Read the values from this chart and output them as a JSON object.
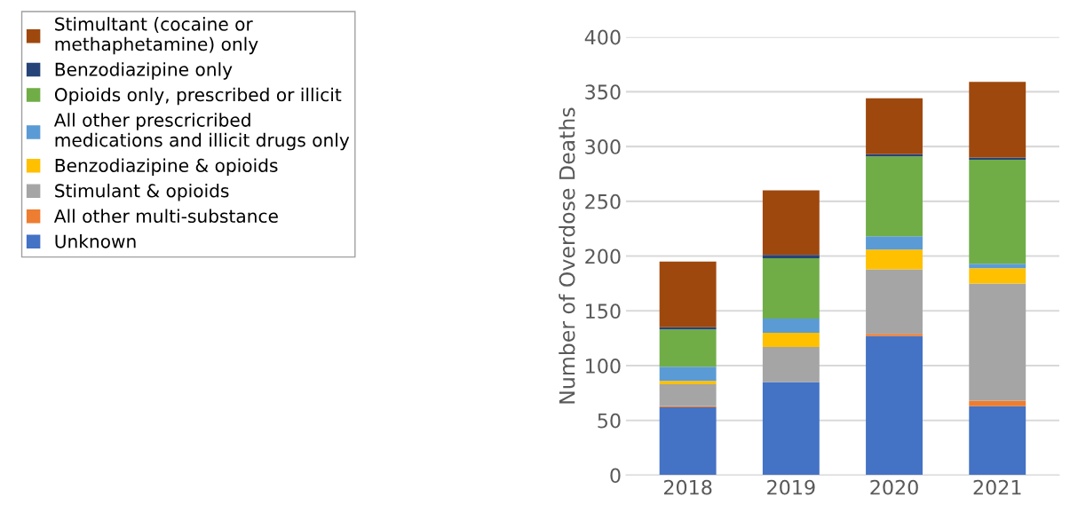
{
  "chart_data": {
    "type": "bar",
    "stacked": true,
    "ylabel": "Number of Overdose Deaths",
    "categories": [
      "2018",
      "2019",
      "2020",
      "2021"
    ],
    "series": [
      {
        "name": "Unknown",
        "color": "#4472c4",
        "values": [
          62,
          85,
          127,
          63
        ]
      },
      {
        "name": "All other multi-substance",
        "color": "#ed7d31",
        "values": [
          1,
          0,
          2,
          5
        ]
      },
      {
        "name": "Stimulant & opioids",
        "color": "#a5a5a5",
        "values": [
          20,
          32,
          59,
          107
        ]
      },
      {
        "name": "Benzodiazipine & opioids",
        "color": "#ffc000",
        "values": [
          3,
          13,
          18,
          14
        ]
      },
      {
        "name": "All other prescricribed\nmedications and illicit drugs only",
        "color": "#5b9bd5",
        "values": [
          13,
          13,
          12,
          4
        ]
      },
      {
        "name": "Opioids only, prescribed or illicit",
        "color": "#70ad47",
        "values": [
          34,
          55,
          73,
          95
        ]
      },
      {
        "name": "Benzodiazipine only",
        "color": "#264478",
        "values": [
          2,
          3,
          2,
          2
        ]
      },
      {
        "name": "Stimultant (cocaine or\nmethaphetamine) only",
        "color": "#9e480e",
        "values": [
          60,
          59,
          51,
          69
        ]
      }
    ],
    "ylim": [
      0,
      400
    ],
    "yticks": [
      0,
      50,
      100,
      150,
      200,
      250,
      300,
      350,
      400
    ],
    "grid": "y",
    "legend": "left"
  }
}
